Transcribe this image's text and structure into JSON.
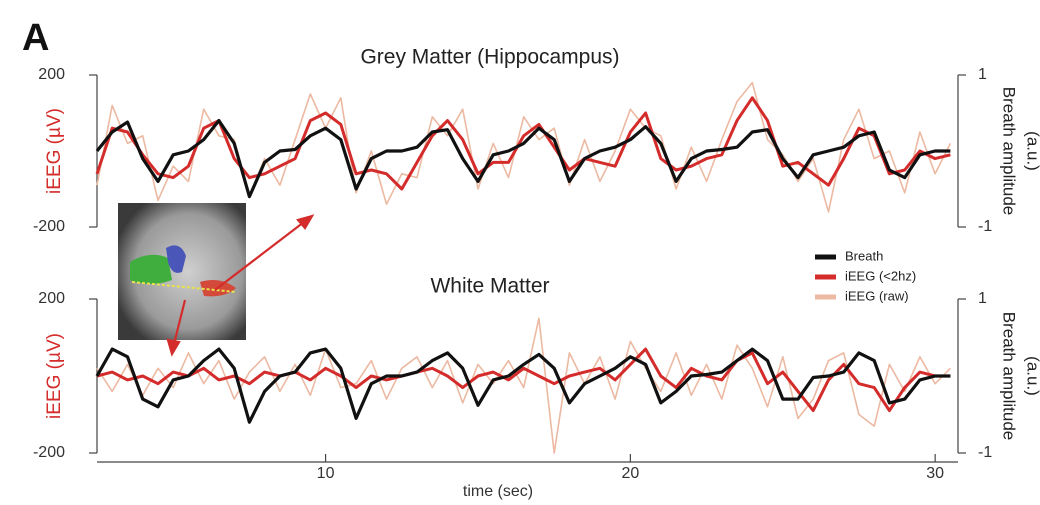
{
  "panel_label": "A",
  "chart_data": [
    {
      "type": "line",
      "title": "Grey Matter (Hippocampus)",
      "ylabel": "iEEG (µV)",
      "y2label": [
        "Breath amplitude",
        "(a.u.)"
      ],
      "xlim": [
        2.5,
        30.75
      ],
      "ylim": [
        -200,
        200
      ],
      "yticks": [
        -200,
        200
      ],
      "y2lim": [
        -1,
        1
      ],
      "y2ticks": [
        -1,
        1
      ],
      "x": [
        2.5,
        3,
        3.5,
        4,
        4.5,
        5,
        5.5,
        6,
        6.5,
        7,
        7.5,
        8,
        8.5,
        9,
        9.5,
        10,
        10.5,
        11,
        11.5,
        12,
        12.5,
        13,
        13.5,
        14,
        14.5,
        15,
        15.5,
        16,
        16.5,
        17,
        17.5,
        18,
        18.5,
        19,
        19.5,
        20,
        20.5,
        21,
        21.5,
        22,
        22.5,
        23,
        23.5,
        24,
        24.5,
        25,
        25.5,
        26,
        26.5,
        27,
        27.5,
        28,
        28.5,
        29,
        29.5,
        30,
        30.5
      ],
      "series": [
        {
          "color": "#ecb9a2",
          "values": [
            -90,
            120,
            20,
            40,
            -130,
            -40,
            -80,
            110,
            40,
            30,
            -120,
            -20,
            -90,
            30,
            150,
            60,
            140,
            -110,
            0,
            -140,
            -60,
            -70,
            90,
            40,
            110,
            -100,
            20,
            -70,
            90,
            30,
            60,
            -90,
            30,
            -80,
            0,
            110,
            60,
            40,
            -100,
            10,
            -80,
            30,
            130,
            180,
            30,
            -10,
            -80,
            -20,
            -160,
            30,
            110,
            -20,
            0,
            -110,
            50,
            -60,
            20
          ]
        },
        {
          "color": "#d42b2b",
          "values": [
            -60,
            60,
            50,
            -10,
            -60,
            -70,
            -40,
            60,
            80,
            -20,
            -70,
            -60,
            -40,
            -20,
            80,
            100,
            70,
            -60,
            -50,
            -60,
            -100,
            -30,
            40,
            80,
            30,
            -60,
            -30,
            -30,
            40,
            70,
            10,
            -50,
            -20,
            -30,
            -40,
            50,
            100,
            -20,
            -50,
            -40,
            -20,
            -10,
            80,
            140,
            80,
            -40,
            -30,
            -60,
            -90,
            -20,
            60,
            40,
            -60,
            -50,
            0,
            -20,
            -10
          ]
        },
        {
          "color": "#111111",
          "axis": "y2",
          "values": [
            0,
            0.25,
            0.38,
            -0.1,
            -0.4,
            -0.05,
            0,
            0.15,
            0.4,
            0.1,
            -0.6,
            -0.15,
            0,
            0.02,
            0.2,
            0.3,
            0.15,
            -0.5,
            -0.1,
            0,
            0,
            0.05,
            0.25,
            0.28,
            -0.1,
            -0.4,
            -0.05,
            0,
            0.1,
            0.3,
            0.15,
            -0.4,
            -0.1,
            0,
            0.05,
            0.15,
            0.32,
            0.1,
            -0.4,
            -0.1,
            0,
            0.02,
            0.05,
            0.25,
            0.28,
            -0.1,
            -0.35,
            -0.05,
            0,
            0.05,
            0.2,
            0.25,
            -0.25,
            -0.35,
            -0.05,
            0,
            0
          ]
        }
      ]
    },
    {
      "type": "line",
      "title": "White Matter",
      "ylabel": "iEEG (µV)",
      "y2label": [
        "Breath amplitude",
        "(a.u.)"
      ],
      "xlabel": "time (sec)",
      "xlim": [
        2.5,
        30.75
      ],
      "xticks": [
        10,
        20,
        30
      ],
      "ylim": [
        -200,
        200
      ],
      "yticks": [
        -200,
        200
      ],
      "y2lim": [
        -1,
        1
      ],
      "y2ticks": [
        -1,
        1
      ],
      "legend": true,
      "x": [
        2.5,
        3,
        3.5,
        4,
        4.5,
        5,
        5.5,
        6,
        6.5,
        7,
        7.5,
        8,
        8.5,
        9,
        9.5,
        10,
        10.5,
        11,
        11.5,
        12,
        12.5,
        13,
        13.5,
        14,
        14.5,
        15,
        15.5,
        16,
        16.5,
        17,
        17.5,
        18,
        18.5,
        19,
        19.5,
        20,
        20.5,
        21,
        21.5,
        22,
        22.5,
        23,
        23.5,
        24,
        24.5,
        25,
        25.5,
        26,
        26.5,
        27,
        27.5,
        28,
        28.5,
        29,
        29.5,
        30,
        30.5
      ],
      "series": [
        {
          "name": "iEEG (raw)",
          "color": "#ecb9a2",
          "values": [
            20,
            -40,
            30,
            -50,
            20,
            -30,
            60,
            -20,
            40,
            -60,
            10,
            50,
            -40,
            30,
            -50,
            70,
            -30,
            -20,
            40,
            -60,
            20,
            50,
            -30,
            40,
            -70,
            30,
            -20,
            40,
            -30,
            150,
            -200,
            60,
            -20,
            50,
            -60,
            90,
            20,
            -40,
            60,
            -50,
            30,
            -60,
            80,
            20,
            -80,
            50,
            -110,
            -60,
            40,
            60,
            -100,
            -130,
            30,
            -40,
            50,
            -20,
            20
          ]
        },
        {
          "name": "iEEG (<2hz)",
          "color": "#d42b2b",
          "values": [
            0,
            10,
            -10,
            0,
            -20,
            10,
            0,
            20,
            -10,
            0,
            -20,
            10,
            0,
            10,
            -10,
            20,
            0,
            -30,
            0,
            -10,
            0,
            10,
            20,
            0,
            -30,
            0,
            10,
            -10,
            20,
            0,
            -20,
            0,
            10,
            20,
            -10,
            30,
            70,
            0,
            -30,
            20,
            0,
            -10,
            40,
            60,
            -20,
            10,
            -40,
            -90,
            -10,
            30,
            -20,
            -30,
            -90,
            -30,
            10,
            0,
            0
          ]
        },
        {
          "name": "Breath",
          "color": "#111111",
          "axis": "y2",
          "values": [
            0,
            0.35,
            0.25,
            -0.3,
            -0.4,
            -0.05,
            0,
            0.2,
            0.35,
            0.1,
            -0.6,
            -0.2,
            0,
            0.05,
            0.3,
            0.35,
            0.1,
            -0.55,
            -0.1,
            0,
            0,
            0.05,
            0.2,
            0.3,
            0.1,
            -0.38,
            -0.05,
            0,
            0.15,
            0.28,
            0.1,
            -0.35,
            -0.1,
            0,
            0.1,
            0.25,
            0.15,
            -0.35,
            -0.2,
            0,
            0.02,
            0.05,
            0.2,
            0.35,
            0.2,
            -0.3,
            -0.3,
            -0.02,
            0,
            0.05,
            0.3,
            0.2,
            -0.35,
            -0.3,
            -0.05,
            0,
            0
          ]
        }
      ]
    }
  ]
}
